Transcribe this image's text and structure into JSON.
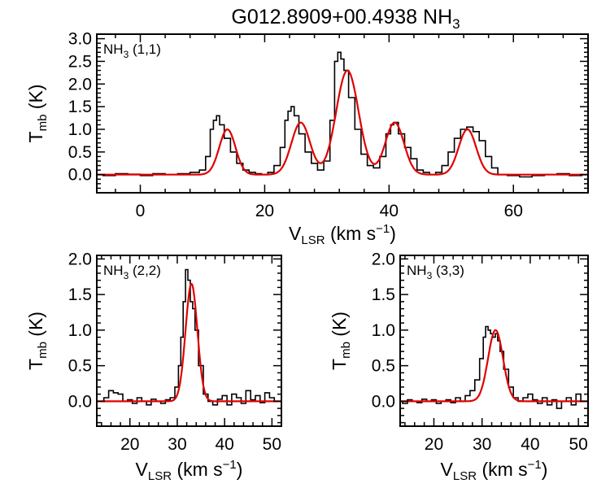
{
  "figure": {
    "title_main": "G012.8909+00.4938 NH",
    "title_sub": "3"
  },
  "chart_data": [
    {
      "id": "nh3_11",
      "type": "line",
      "label_main": "NH",
      "label_sub": "3",
      "label_trans": " (1,1)",
      "xlim": [
        -7,
        72
      ],
      "ylim": [
        -0.4,
        3.1
      ],
      "xticks": [
        0,
        20,
        40,
        60
      ],
      "yticks": [
        0.0,
        0.5,
        1.0,
        1.5,
        2.0,
        2.5,
        3.0
      ],
      "ytick_labels": [
        "0.0",
        "0.5",
        "1.0",
        "1.5",
        "2.0",
        "2.5",
        "3.0"
      ],
      "xlabel": {
        "main": "V",
        "sub": "LSR",
        "unit": " (km s",
        "sup": "−1",
        "close": ")"
      },
      "ylabel": {
        "main": "T",
        "sub": "mb",
        "unit": " (K)"
      },
      "spectrum": {
        "x": [
          -7,
          -5,
          -3,
          -1,
          1,
          3,
          5,
          7,
          9,
          10,
          11,
          11.5,
          12,
          12.5,
          13,
          14,
          15,
          16,
          17,
          18,
          19,
          20,
          21,
          22,
          23,
          23.5,
          24,
          24.5,
          25,
          26,
          27,
          28,
          29,
          30,
          31,
          31.5,
          32,
          32.5,
          33,
          34,
          35,
          36,
          37,
          38,
          39,
          40,
          40.5,
          41,
          42,
          43,
          44,
          45,
          46,
          47,
          48,
          49,
          50,
          51,
          52,
          53,
          54,
          55,
          56,
          57,
          58,
          60,
          62,
          64,
          66,
          68,
          70,
          72
        ],
        "y": [
          0.0,
          -0.02,
          0.02,
          0.01,
          -0.02,
          0.02,
          0.0,
          0.02,
          0.05,
          0.1,
          0.4,
          1.0,
          1.2,
          1.3,
          1.1,
          0.8,
          0.5,
          0.25,
          0.1,
          0.05,
          0.02,
          0.0,
          0.05,
          0.2,
          0.6,
          1.2,
          1.4,
          1.5,
          1.3,
          0.9,
          0.5,
          0.25,
          0.1,
          0.3,
          1.2,
          2.5,
          2.7,
          2.55,
          2.3,
          1.7,
          1.0,
          0.45,
          0.2,
          0.15,
          0.4,
          0.9,
          1.1,
          1.15,
          0.9,
          0.6,
          0.35,
          0.1,
          0.05,
          0.0,
          0.05,
          0.2,
          0.5,
          0.8,
          1.0,
          1.05,
          0.95,
          0.75,
          0.4,
          0.15,
          0.0,
          -0.02,
          -0.05,
          -0.02,
          0.0,
          0.02,
          -0.02,
          0.0
        ]
      },
      "model": {
        "components": [
          {
            "center": 14.0,
            "amp": 1.0,
            "sigma": 1.3
          },
          {
            "center": 25.8,
            "amp": 1.15,
            "sigma": 1.5
          },
          {
            "center": 33.3,
            "amp": 2.3,
            "sigma": 1.8
          },
          {
            "center": 40.9,
            "amp": 1.15,
            "sigma": 1.5
          },
          {
            "center": 52.6,
            "amp": 1.0,
            "sigma": 1.4
          }
        ]
      }
    },
    {
      "id": "nh3_22",
      "type": "line",
      "label_main": "NH",
      "label_sub": "3",
      "label_trans": " (2,2)",
      "xlim": [
        13,
        52
      ],
      "ylim": [
        -0.35,
        2.05
      ],
      "xticks": [
        20,
        30,
        40,
        50
      ],
      "yticks": [
        0.0,
        0.5,
        1.0,
        1.5,
        2.0
      ],
      "ytick_labels": [
        "0.0",
        "0.5",
        "1.0",
        "1.5",
        "2.0"
      ],
      "xlabel": {
        "main": "V",
        "sub": "LSR",
        "unit": " (km s",
        "sup": "−1",
        "close": ")"
      },
      "ylabel": {
        "main": "T",
        "sub": "mb",
        "unit": " (K)"
      },
      "spectrum": {
        "x": [
          13,
          14,
          15,
          16,
          17,
          18,
          19,
          20,
          21,
          22,
          23,
          24,
          25,
          26,
          27,
          28,
          29,
          30,
          30.5,
          31,
          31.5,
          32,
          32.5,
          33,
          33.5,
          34,
          35,
          36,
          37,
          38,
          39,
          40,
          41,
          42,
          43,
          44,
          45,
          46,
          47,
          48,
          49,
          50,
          51,
          52
        ],
        "y": [
          0.0,
          0.0,
          0.05,
          0.15,
          0.12,
          0.1,
          0.0,
          0.02,
          -0.03,
          0.05,
          0.0,
          -0.05,
          0.03,
          0.0,
          -0.03,
          0.02,
          0.05,
          0.2,
          0.5,
          0.9,
          1.4,
          1.85,
          1.7,
          1.4,
          1.3,
          1.0,
          0.5,
          0.1,
          0.0,
          -0.05,
          0.03,
          0.08,
          -0.05,
          0.1,
          0.05,
          -0.03,
          0.15,
          0.02,
          0.08,
          -0.02,
          0.12,
          0.05,
          0.0,
          0.0
        ]
      },
      "model": {
        "components": [
          {
            "center": 33.0,
            "amp": 1.65,
            "sigma": 1.25
          }
        ]
      }
    },
    {
      "id": "nh3_33",
      "type": "line",
      "label_main": "NH",
      "label_sub": "3",
      "label_trans": " (3,3)",
      "xlim": [
        13,
        52
      ],
      "ylim": [
        -0.35,
        2.05
      ],
      "xticks": [
        20,
        30,
        40,
        50
      ],
      "yticks": [
        0.0,
        0.5,
        1.0,
        1.5,
        2.0
      ],
      "ytick_labels": [
        "0.0",
        "0.5",
        "1.0",
        "1.5",
        "2.0"
      ],
      "xlabel": {
        "main": "V",
        "sub": "LSR",
        "unit": " (km s",
        "sup": "−1",
        "close": ")"
      },
      "ylabel": {
        "main": "T",
        "sub": "mb",
        "unit": " (K)"
      },
      "spectrum": {
        "x": [
          13,
          14,
          15,
          16,
          17,
          18,
          19,
          20,
          21,
          22,
          23,
          24,
          25,
          26,
          27,
          28,
          29,
          30,
          30.5,
          31,
          31.5,
          32,
          32.5,
          33,
          33.5,
          34,
          35,
          36,
          37,
          38,
          39,
          40,
          41,
          42,
          43,
          44,
          45,
          46,
          47,
          48,
          49,
          50,
          51,
          52
        ],
        "y": [
          0.0,
          -0.03,
          0.02,
          0.0,
          -0.02,
          0.03,
          0.0,
          0.02,
          -0.03,
          0.0,
          0.02,
          -0.02,
          0.05,
          0.0,
          0.08,
          0.15,
          0.3,
          0.6,
          0.9,
          1.05,
          1.0,
          0.95,
          0.9,
          0.95,
          0.85,
          0.7,
          0.45,
          0.2,
          0.05,
          0.0,
          0.05,
          0.1,
          0.02,
          -0.03,
          0.05,
          -0.05,
          0.02,
          -0.1,
          0.0,
          0.05,
          -0.05,
          0.1,
          0.0,
          0.0
        ]
      },
      "model": {
        "components": [
          {
            "center": 32.8,
            "amp": 1.0,
            "sigma": 1.55
          }
        ]
      }
    }
  ]
}
